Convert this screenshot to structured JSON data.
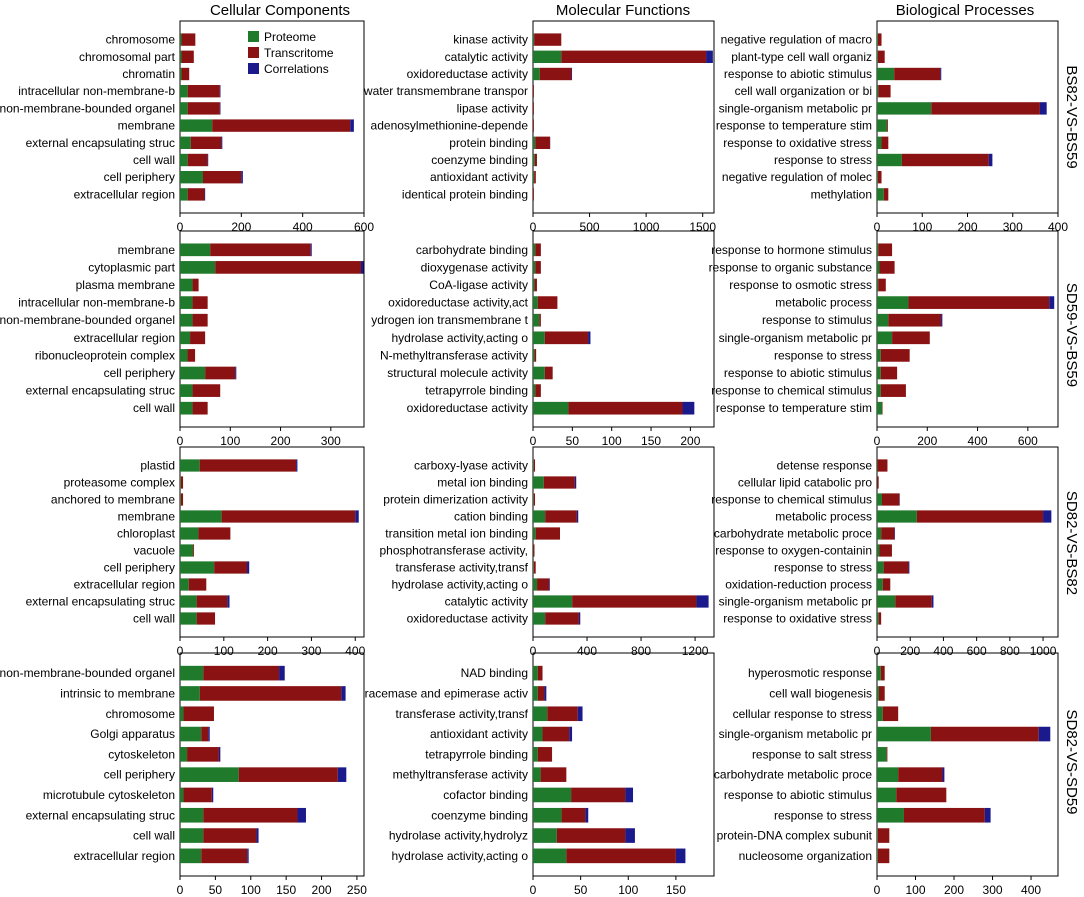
{
  "column_titles": [
    "Cellular Components",
    "Molecular Functions",
    "Biological Processes"
  ],
  "row_labels": [
    "BS82-VS-BS59",
    "SD59-VS-BS59",
    "SD82-VS-BS82",
    "SD82-VS-SD59"
  ],
  "legend": [
    {
      "name": "Proteome",
      "color": "#1f7a2c"
    },
    {
      "name": "Transcritome",
      "color": "#8b1212"
    },
    {
      "name": "Correlations",
      "color": "#1a1a8c"
    }
  ],
  "chart_data": [
    {
      "type": "bar",
      "orientation": "horizontal",
      "stacked": true,
      "column": "Cellular Components",
      "row": "BS82-VS-BS59",
      "categories": [
        "chromosome",
        "chromosomal part",
        "chromatin",
        "intracellular non-membrane-b",
        "non-membrane-bounded organel",
        "membrane",
        "external encapsulating struc",
        "cell wall",
        "cell periphery",
        "extracellular region"
      ],
      "series": [
        {
          "name": "Proteome",
          "values": [
            5,
            5,
            5,
            25,
            25,
            105,
            35,
            25,
            75,
            25
          ]
        },
        {
          "name": "Transcritome",
          "values": [
            45,
            40,
            25,
            105,
            105,
            450,
            100,
            65,
            125,
            55
          ]
        },
        {
          "name": "Correlations",
          "values": [
            0,
            0,
            0,
            2,
            2,
            12,
            3,
            2,
            5,
            2
          ]
        }
      ],
      "xticks": [
        0,
        200,
        400,
        600
      ],
      "xlim": [
        0,
        600
      ]
    },
    {
      "type": "bar",
      "orientation": "horizontal",
      "stacked": true,
      "column": "Molecular Functions",
      "row": "BS82-VS-BS59",
      "categories": [
        "kinase activity",
        "catalytic activity",
        "oxidoreductase activity",
        "water transmembrane transpor",
        "lipase activity",
        "adenosylmethionine-depende",
        "protein binding",
        "coenzyme binding",
        "antioxidant activity",
        "identical protein binding"
      ],
      "series": [
        {
          "name": "Proteome",
          "values": [
            10,
            250,
            60,
            0,
            0,
            0,
            20,
            15,
            10,
            0
          ]
        },
        {
          "name": "Transcritome",
          "values": [
            240,
            1280,
            280,
            8,
            8,
            8,
            130,
            20,
            15,
            8
          ]
        },
        {
          "name": "Correlations",
          "values": [
            0,
            60,
            5,
            0,
            0,
            0,
            2,
            0,
            0,
            0
          ]
        }
      ],
      "xticks": [
        0,
        500,
        1000,
        1500
      ],
      "xlim": [
        0,
        1600
      ]
    },
    {
      "type": "bar",
      "orientation": "horizontal",
      "stacked": true,
      "column": "Biological Processes",
      "row": "BS82-VS-BS59",
      "categories": [
        "negative regulation of macro",
        "plant-type cell wall organiz",
        "response to abiotic stimulus",
        "cell wall organization or bi",
        "single-organism metabolic pr",
        "response to temperature stim",
        "response to oxidative stress",
        "response to stress",
        "negative regulation of molec",
        "methylation"
      ],
      "series": [
        {
          "name": "Proteome",
          "values": [
            2,
            2,
            38,
            3,
            120,
            22,
            10,
            55,
            2,
            15
          ]
        },
        {
          "name": "Transcritome",
          "values": [
            8,
            15,
            102,
            27,
            240,
            2,
            15,
            192,
            8,
            10
          ]
        },
        {
          "name": "Correlations",
          "values": [
            0,
            0,
            2,
            0,
            15,
            0,
            0,
            8,
            0,
            0
          ]
        }
      ],
      "xticks": [
        0,
        100,
        200,
        300,
        400
      ],
      "xlim": [
        0,
        400
      ]
    },
    {
      "type": "bar",
      "orientation": "horizontal",
      "stacked": true,
      "column": "Cellular Components",
      "row": "SD59-VS-BS59",
      "categories": [
        "membrane",
        "cytoplasmic part",
        "plasma membrane",
        "intracellular non-membrane-b",
        "non-membrane-bounded organel",
        "extracellular region",
        "ribonucleoprotein complex",
        "cell periphery",
        "external encapsulating struc",
        "cell wall"
      ],
      "series": [
        {
          "name": "Proteome",
          "values": [
            60,
            70,
            25,
            25,
            25,
            20,
            15,
            50,
            25,
            25
          ]
        },
        {
          "name": "Transcritome",
          "values": [
            200,
            290,
            12,
            30,
            30,
            30,
            15,
            60,
            55,
            30
          ]
        },
        {
          "name": "Correlations",
          "values": [
            2,
            5,
            0,
            0,
            0,
            0,
            0,
            2,
            0,
            0
          ]
        }
      ],
      "xticks": [
        0,
        100,
        200,
        300
      ],
      "xlim": [
        0,
        366
      ]
    },
    {
      "type": "bar",
      "orientation": "horizontal",
      "stacked": true,
      "column": "Molecular Functions",
      "row": "SD59-VS-BS59",
      "categories": [
        "carbohydrate binding",
        "dioxygenase activity",
        "CoA-ligase activity",
        "oxidoreductase activity,act",
        "ydrogen ion transmembrane t",
        "hydrolase activity,acting o",
        "N-methyltransferase activity",
        "structural molecule activity",
        "tetrapyrrole binding",
        "oxidoreductase activity"
      ],
      "series": [
        {
          "name": "Proteome",
          "values": [
            3,
            3,
            2,
            6,
            8,
            15,
            2,
            15,
            3,
            45
          ]
        },
        {
          "name": "Transcritome",
          "values": [
            7,
            7,
            3,
            25,
            2,
            55,
            2,
            10,
            7,
            145
          ]
        },
        {
          "name": "Correlations",
          "values": [
            0,
            0,
            0,
            0,
            0,
            3,
            0,
            0,
            0,
            15
          ]
        }
      ],
      "xticks": [
        0,
        50,
        100,
        150,
        200
      ],
      "xlim": [
        0,
        230
      ]
    },
    {
      "type": "bar",
      "orientation": "horizontal",
      "stacked": true,
      "column": "Biological Processes",
      "row": "SD59-VS-BS59",
      "categories": [
        "response to hormone stimulus",
        "response to organic substance",
        "response to osmotic stress",
        "metabolic process",
        "response to stimulus",
        "single-organism metabolic pr",
        "response to stress",
        "response to abiotic stimulus",
        "response to chemical stimulus",
        "response to temperature stim"
      ],
      "series": [
        {
          "name": "Proteome",
          "values": [
            5,
            10,
            5,
            125,
            45,
            60,
            15,
            15,
            15,
            20
          ]
        },
        {
          "name": "Transcritome",
          "values": [
            55,
            60,
            30,
            560,
            210,
            150,
            115,
            65,
            100,
            2
          ]
        },
        {
          "name": "Correlations",
          "values": [
            0,
            0,
            0,
            20,
            5,
            0,
            0,
            0,
            0,
            0
          ]
        }
      ],
      "xticks": [
        0,
        200,
        400,
        600
      ],
      "xlim": [
        0,
        720
      ]
    },
    {
      "type": "bar",
      "orientation": "horizontal",
      "stacked": true,
      "column": "Cellular Components",
      "row": "SD82-VS-BS82",
      "categories": [
        "plastid",
        "proteasome complex",
        "anchored to membrane",
        "membrane",
        "chloroplast",
        "vacuole",
        "cell periphery",
        "extracellular region",
        "external encapsulating struc",
        "cell wall"
      ],
      "series": [
        {
          "name": "Proteome",
          "values": [
            45,
            2,
            2,
            95,
            42,
            30,
            78,
            20,
            38,
            38
          ]
        },
        {
          "name": "Transcritome",
          "values": [
            220,
            5,
            5,
            305,
            73,
            2,
            75,
            40,
            70,
            42
          ]
        },
        {
          "name": "Correlations",
          "values": [
            3,
            0,
            0,
            8,
            0,
            0,
            5,
            0,
            5,
            0
          ]
        }
      ],
      "xticks": [
        0,
        100,
        200,
        300,
        400
      ],
      "xlim": [
        0,
        420
      ]
    },
    {
      "type": "bar",
      "orientation": "horizontal",
      "stacked": true,
      "column": "Molecular Functions",
      "row": "SD82-VS-BS82",
      "categories": [
        "carboxy-lyase activity",
        "metal ion binding",
        "protein dimerization activity",
        "cation binding",
        "transition metal ion binding",
        "phosphotransferase activity,",
        "transferase activity,transf",
        "hydrolase activity,acting o",
        "catalytic activity",
        "oxidoreductase activity"
      ],
      "series": [
        {
          "name": "Proteome",
          "values": [
            5,
            80,
            5,
            90,
            20,
            3,
            5,
            30,
            290,
            90
          ]
        },
        {
          "name": "Transcritome",
          "values": [
            10,
            230,
            10,
            235,
            180,
            8,
            15,
            90,
            920,
            250
          ]
        },
        {
          "name": "Correlations",
          "values": [
            0,
            10,
            0,
            10,
            0,
            0,
            0,
            5,
            90,
            10
          ]
        }
      ],
      "xticks": [
        0,
        400,
        800,
        1200
      ],
      "xlim": [
        0,
        1340
      ]
    },
    {
      "type": "bar",
      "orientation": "horizontal",
      "stacked": true,
      "column": "Biological Processes",
      "row": "SD82-VS-BS82",
      "categories": [
        "detense response",
        "cellular lipid catabolic pro",
        "response to chemical stimulus",
        "metabolic process",
        "carbohydrate metabolic proce",
        "response to oxygen-containin",
        "response to stress",
        "oxidation-reduction process",
        "single-organism metabolic pr",
        "response to oxidative stress"
      ],
      "series": [
        {
          "name": "Proteome",
          "values": [
            3,
            2,
            30,
            240,
            25,
            15,
            40,
            35,
            110,
            10
          ]
        },
        {
          "name": "Transcritome",
          "values": [
            60,
            8,
            105,
            760,
            80,
            75,
            150,
            45,
            220,
            15
          ]
        },
        {
          "name": "Correlations",
          "values": [
            0,
            0,
            2,
            50,
            3,
            0,
            5,
            0,
            10,
            0
          ]
        }
      ],
      "xticks": [
        0,
        200,
        400,
        600,
        800,
        1000
      ],
      "xlim": [
        0,
        1090
      ]
    },
    {
      "type": "bar",
      "orientation": "horizontal",
      "stacked": true,
      "column": "Cellular Components",
      "row": "SD82-VS-SD59",
      "categories": [
        "non-membrane-bounded organel",
        "intrinsic to membrane",
        "chromosome",
        "Golgi apparatus",
        "cytoskeleton",
        "cell periphery",
        "microtubule cytoskeleton",
        "external encapsulating struc",
        "cell wall",
        "extracellular region"
      ],
      "series": [
        {
          "name": "Proteome",
          "values": [
            33,
            28,
            5,
            30,
            10,
            83,
            5,
            33,
            33,
            30
          ]
        },
        {
          "name": "Transcritome",
          "values": [
            107,
            200,
            43,
            10,
            45,
            140,
            40,
            133,
            75,
            65
          ]
        },
        {
          "name": "Correlations",
          "values": [
            8,
            6,
            0,
            2,
            2,
            12,
            2,
            12,
            3,
            2
          ]
        }
      ],
      "xticks": [
        0,
        50,
        100,
        150,
        200,
        250
      ],
      "xlim": [
        0,
        260
      ]
    },
    {
      "type": "bar",
      "orientation": "horizontal",
      "stacked": true,
      "column": "Molecular Functions",
      "row": "SD82-VS-SD59",
      "categories": [
        "NAD binding",
        "racemase and epimerase activ",
        "transferase activity,transf",
        "antioxidant activity",
        "tetrapyrrole binding",
        "methyltransferase activity",
        "cofactor binding",
        "coenzyme binding",
        "hydrolase activity,hydrolyz",
        "hydrolase activity,acting o"
      ],
      "series": [
        {
          "name": "Proteome",
          "values": [
            5,
            5,
            15,
            10,
            5,
            8,
            40,
            30,
            25,
            35
          ]
        },
        {
          "name": "Transcritome",
          "values": [
            5,
            7,
            32,
            28,
            15,
            27,
            57,
            25,
            72,
            115
          ]
        },
        {
          "name": "Correlations",
          "values": [
            0,
            2,
            5,
            3,
            0,
            0,
            8,
            3,
            10,
            10
          ]
        }
      ],
      "xticks": [
        0,
        50,
        100,
        150
      ],
      "xlim": [
        0,
        190
      ]
    },
    {
      "type": "bar",
      "orientation": "horizontal",
      "stacked": true,
      "column": "Biological Processes",
      "row": "SD82-VS-SD59",
      "categories": [
        "hyperosmotic response",
        "cell wall biogenesis",
        "cellular response to stress",
        "single-organism metabolic pr",
        "response to salt stress",
        "carbohydrate metabolic proce",
        "response to abiotic stimulus",
        "response to stress",
        "protein-DNA complex subunit",
        "nucleosome organization"
      ],
      "series": [
        {
          "name": "Proteome",
          "values": [
            10,
            5,
            15,
            140,
            25,
            55,
            50,
            70,
            2,
            2
          ]
        },
        {
          "name": "Transcritome",
          "values": [
            10,
            15,
            40,
            280,
            2,
            115,
            130,
            210,
            30,
            30
          ]
        },
        {
          "name": "Correlations",
          "values": [
            0,
            0,
            0,
            30,
            0,
            5,
            0,
            15,
            0,
            0
          ]
        }
      ],
      "xticks": [
        0,
        100,
        200,
        300,
        400
      ],
      "xlim": [
        0,
        470
      ]
    }
  ]
}
